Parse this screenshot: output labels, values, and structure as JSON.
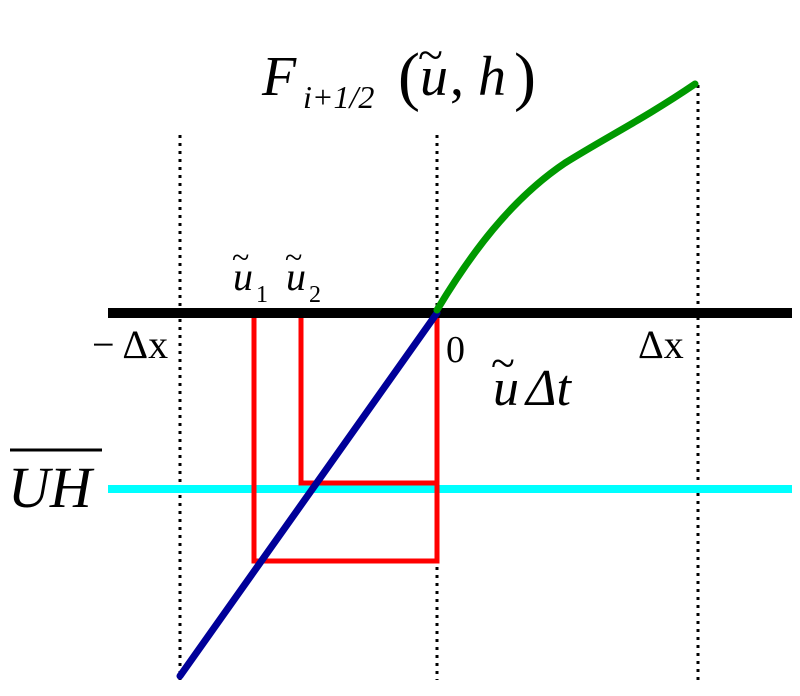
{
  "title": {
    "F": "F",
    "sub": "i+1/2",
    "open": "(",
    "u": "u",
    "tilde": "~",
    "comma": ", ",
    "h": "h",
    "close": ")"
  },
  "axis": {
    "minus_dx": "− Δx",
    "zero": "0",
    "dx": "Δx",
    "u_dt_u": "u",
    "u_dt_tilde": "~",
    "u_dt_rest": "Δt"
  },
  "labels": {
    "u1_u": "u",
    "u1_tilde": "~",
    "u1_sub": "1",
    "u2_u": "u",
    "u2_tilde": "~",
    "u2_sub": "2",
    "uh": "UH"
  },
  "colors": {
    "axis": "#000000",
    "blue_curve": "#000099",
    "green_curve": "#009900",
    "red_lines": "#ff0000",
    "cyan_level": "#00ffff",
    "dotted": "#000000"
  },
  "legend_items": [
    "blue-curve",
    "green-curve",
    "red-rectangles",
    "cyan-level-line"
  ]
}
